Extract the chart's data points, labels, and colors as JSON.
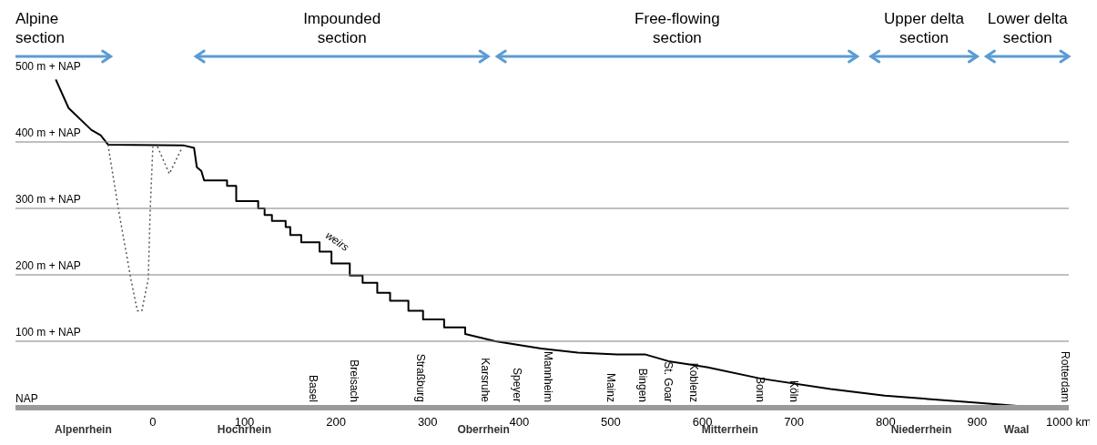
{
  "chart_data": {
    "type": "line",
    "xlim": [
      -150,
      1000
    ],
    "xticks": [
      0,
      100,
      200,
      300,
      400,
      500,
      600,
      700,
      800,
      900,
      {
        "value": 1000,
        "label": "1000 km"
      }
    ],
    "ylim": [
      0,
      500
    ],
    "yticks": [
      {
        "value": 0,
        "label": "NAP"
      },
      {
        "value": 100,
        "label": "100 m + NAP"
      },
      {
        "value": 200,
        "label": "200 m + NAP"
      },
      {
        "value": 300,
        "label": "300 m + NAP"
      },
      {
        "value": 400,
        "label": "400 m + NAP"
      },
      {
        "value": 500,
        "label": "500 m + NAP"
      }
    ],
    "grid": "y",
    "marker": "none",
    "series": [
      {
        "color": "#000000",
        "line_style": "solid",
        "x": [
          -106,
          -92,
          -67,
          -57,
          -49,
          33,
          45,
          48,
          53,
          56,
          81,
          81,
          91,
          91,
          115,
          115,
          122,
          122,
          130,
          130,
          145,
          145,
          150,
          150,
          162,
          162,
          182,
          182,
          195,
          195,
          215,
          215,
          229,
          229,
          245,
          245,
          259,
          259,
          279,
          279,
          295,
          295,
          318,
          318,
          341,
          341,
          374,
          424,
          464,
          507,
          538,
          563,
          605,
          663,
          740,
          799,
          896,
          969,
          1000
        ],
        "values": [
          494,
          451,
          418,
          410,
          396,
          395,
          391,
          362,
          356,
          342,
          342,
          334,
          334,
          311,
          311,
          300,
          300,
          290,
          290,
          281,
          281,
          272,
          272,
          260,
          260,
          249,
          249,
          235,
          235,
          217,
          217,
          199,
          199,
          188,
          188,
          173,
          173,
          161,
          161,
          146,
          146,
          133,
          133,
          121,
          121,
          111,
          100,
          89,
          83,
          80,
          80,
          70,
          61,
          44,
          28,
          18,
          8,
          0,
          0
        ]
      },
      {
        "color": "#555555",
        "line_style": "dotted",
        "x": [
          -49,
          -37,
          -24,
          -17,
          -12,
          -5,
          -3,
          0,
          2,
          5,
          18,
          31
        ],
        "values": [
          396,
          294,
          194,
          146,
          146,
          194,
          294,
          393,
          null,
          393,
          352,
          389
        ]
      }
    ],
    "annotations": [
      "Alpine\nsection",
      "Impounded\nsection",
      "Free-flowing\nsection",
      "Upper delta\nsection",
      "Lower delta\nsection",
      "weirs",
      "Basel",
      "Breisach",
      "Straßburg",
      "Karsruhe",
      "Speyer",
      "Mannheim",
      "Mainz",
      "Bingen",
      "St. Goar",
      "Koblenz",
      "Bonn",
      "Köln",
      "Rotterdam",
      "Alpenrhein",
      "Hochrhein",
      "Oberrhein",
      "Mitterrhein",
      "Niederrhein",
      "Waal"
    ]
  }
}
